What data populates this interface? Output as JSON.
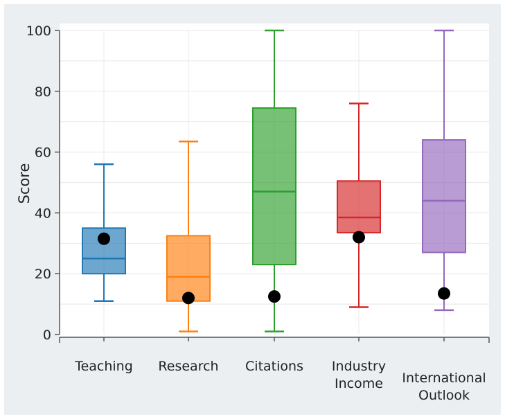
{
  "chart_data": {
    "type": "box",
    "title": "",
    "xlabel": "",
    "ylabel": "Score",
    "ylim": [
      0,
      100
    ],
    "yticks": [
      0,
      20,
      40,
      60,
      80,
      100
    ],
    "grid": true,
    "legend": "none",
    "categories": [
      {
        "label": [
          "Teaching"
        ],
        "min": 11,
        "q1": 20,
        "median": 25,
        "q3": 35,
        "max": 56,
        "point": 31.5,
        "color": "#1f77b4"
      },
      {
        "label": [
          "Research"
        ],
        "min": 1,
        "q1": 11,
        "median": 19,
        "q3": 32.5,
        "max": 63.5,
        "point": 12,
        "color": "#ff7f0e"
      },
      {
        "label": [
          "Citations"
        ],
        "min": 1,
        "q1": 23,
        "median": 47,
        "q3": 74.5,
        "max": 100,
        "point": 12.5,
        "color": "#2ca02c"
      },
      {
        "label": [
          "Industry",
          "Income"
        ],
        "min": 9,
        "q1": 33.5,
        "median": 38.5,
        "q3": 50.5,
        "max": 76,
        "point": 32,
        "color": "#d62728"
      },
      {
        "label": [
          "International",
          "Outlook"
        ],
        "min": 8,
        "q1": 27,
        "median": 44,
        "q3": 64,
        "max": 100,
        "point": 13.5,
        "color": "#9467bd"
      }
    ]
  }
}
